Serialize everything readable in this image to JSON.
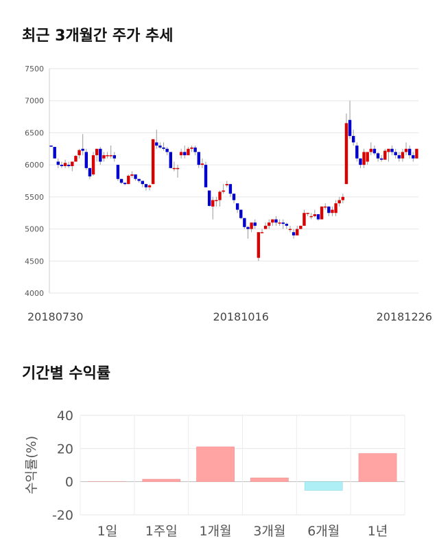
{
  "titles": {
    "price": "최근 3개월간 주가 추세",
    "returns": "기간별 수익률"
  },
  "colors": {
    "up": "#d90000",
    "down": "#0000cc",
    "bar_pos": "#ffa3a3",
    "bar_neg": "#aeeef5"
  },
  "chart_data": [
    {
      "type": "candlestick",
      "title": "최근 3개월간 주가 추세",
      "ylim": [
        4000,
        7500
      ],
      "yticks": [
        4000,
        4500,
        5000,
        5500,
        6000,
        6500,
        7000,
        7500
      ],
      "xtick_labels": [
        {
          "index": 0,
          "label": "20180730"
        },
        {
          "index": 54,
          "label": "20181016"
        },
        {
          "index": 104,
          "label": "20181226"
        }
      ],
      "ohlc": [
        [
          6300,
          6300,
          6280,
          6290
        ],
        [
          6280,
          6280,
          6100,
          6100
        ],
        [
          6050,
          6100,
          5950,
          6000
        ],
        [
          6000,
          6050,
          5950,
          5980
        ],
        [
          5980,
          6080,
          5950,
          6030
        ],
        [
          6000,
          6050,
          5950,
          5980
        ],
        [
          5980,
          6050,
          5900,
          6050
        ],
        [
          6050,
          6150,
          6050,
          6140
        ],
        [
          6150,
          6250,
          6100,
          6230
        ],
        [
          6250,
          6480,
          6150,
          6220
        ],
        [
          6200,
          6250,
          5920,
          5950
        ],
        [
          5950,
          5950,
          5780,
          5820
        ],
        [
          5850,
          6200,
          5830,
          6150
        ],
        [
          6150,
          6250,
          6050,
          6250
        ],
        [
          6250,
          6280,
          6000,
          6050
        ],
        [
          6100,
          6200,
          6050,
          6150
        ],
        [
          6150,
          6200,
          6100,
          6150
        ],
        [
          6150,
          6300,
          6100,
          6150
        ],
        [
          6150,
          6200,
          6050,
          6100
        ],
        [
          6000,
          6000,
          5750,
          5780
        ],
        [
          5780,
          5780,
          5700,
          5720
        ],
        [
          5720,
          5720,
          5680,
          5700
        ],
        [
          5700,
          5850,
          5700,
          5830
        ],
        [
          5830,
          5900,
          5800,
          5850
        ],
        [
          5850,
          5850,
          5750,
          5780
        ],
        [
          5780,
          5780,
          5720,
          5750
        ],
        [
          5750,
          5750,
          5650,
          5700
        ],
        [
          5700,
          5700,
          5600,
          5650
        ],
        [
          5650,
          5700,
          5600,
          5680
        ],
        [
          5700,
          6400,
          5700,
          6400
        ],
        [
          6350,
          6550,
          6250,
          6300
        ],
        [
          6300,
          6350,
          6250,
          6270
        ],
        [
          6270,
          6350,
          6220,
          6250
        ],
        [
          6250,
          6280,
          6150,
          6200
        ],
        [
          6200,
          6200,
          5950,
          5950
        ],
        [
          5950,
          6050,
          5900,
          5950
        ],
        [
          5950,
          6000,
          5800,
          5950
        ],
        [
          6150,
          6250,
          6100,
          6200
        ],
        [
          6200,
          6300,
          6100,
          6150
        ],
        [
          6150,
          6280,
          6150,
          6250
        ],
        [
          6250,
          6300,
          6200,
          6270
        ],
        [
          6270,
          6300,
          6150,
          6200
        ],
        [
          6200,
          6200,
          5950,
          6000
        ],
        [
          6000,
          6100,
          5950,
          6020
        ],
        [
          6000,
          6050,
          5650,
          5650
        ],
        [
          5600,
          5600,
          5350,
          5360
        ],
        [
          5350,
          5500,
          5150,
          5450
        ],
        [
          5450,
          5500,
          5350,
          5450
        ],
        [
          5450,
          5600,
          5350,
          5580
        ],
        [
          5580,
          5700,
          5550,
          5600
        ],
        [
          5680,
          5750,
          5650,
          5700
        ],
        [
          5700,
          5700,
          5500,
          5550
        ],
        [
          5550,
          5550,
          5400,
          5450
        ],
        [
          5400,
          5400,
          5250,
          5300
        ],
        [
          5300,
          5300,
          5150,
          5170
        ],
        [
          5170,
          5170,
          5000,
          5030
        ],
        [
          5030,
          5050,
          4850,
          5000
        ],
        [
          5000,
          5100,
          4950,
          5100
        ],
        [
          5100,
          5150,
          5000,
          5050
        ],
        [
          4550,
          4950,
          4500,
          4950
        ],
        [
          4950,
          5000,
          4950,
          4950
        ],
        [
          5000,
          5100,
          5000,
          5050
        ],
        [
          5050,
          5150,
          5000,
          5100
        ],
        [
          5100,
          5150,
          5050,
          5150
        ],
        [
          5150,
          5200,
          5050,
          5100
        ],
        [
          5100,
          5150,
          5050,
          5100
        ],
        [
          5100,
          5150,
          5000,
          5080
        ],
        [
          5080,
          5100,
          5000,
          5050
        ],
        [
          5000,
          5050,
          4950,
          5000
        ],
        [
          4950,
          5000,
          4850,
          4900
        ],
        [
          4900,
          5050,
          4900,
          5000
        ],
        [
          5000,
          5050,
          5000,
          5050
        ],
        [
          5050,
          5300,
          5050,
          5250
        ],
        [
          5250,
          5250,
          5200,
          5250
        ],
        [
          5200,
          5250,
          5150,
          5200
        ],
        [
          5200,
          5300,
          5180,
          5230
        ],
        [
          5230,
          5230,
          5130,
          5150
        ],
        [
          5150,
          5350,
          5150,
          5350
        ],
        [
          5350,
          5400,
          5300,
          5350
        ],
        [
          5350,
          5350,
          5200,
          5250
        ],
        [
          5250,
          5350,
          5200,
          5300
        ],
        [
          5250,
          5450,
          5200,
          5400
        ],
        [
          5400,
          5500,
          5350,
          5450
        ],
        [
          5450,
          5550,
          5400,
          5500
        ],
        [
          5700,
          6800,
          5700,
          6650
        ],
        [
          6700,
          7000,
          6400,
          6450
        ],
        [
          6450,
          6550,
          6300,
          6350
        ],
        [
          6300,
          6350,
          6050,
          6100
        ],
        [
          6100,
          6100,
          5950,
          6000
        ],
        [
          6000,
          6250,
          5950,
          6200
        ],
        [
          6050,
          6200,
          6000,
          6200
        ],
        [
          6200,
          6350,
          6150,
          6250
        ],
        [
          6250,
          6300,
          6150,
          6180
        ],
        [
          6180,
          6200,
          6050,
          6100
        ],
        [
          6100,
          6150,
          6050,
          6080
        ],
        [
          6080,
          6250,
          6080,
          6220
        ],
        [
          6200,
          6250,
          6050,
          6250
        ],
        [
          6250,
          6300,
          6150,
          6200
        ],
        [
          6200,
          6250,
          6100,
          6150
        ],
        [
          6150,
          6200,
          6050,
          6100
        ],
        [
          6100,
          6250,
          6050,
          6200
        ],
        [
          6200,
          6350,
          6150,
          6250
        ],
        [
          6250,
          6300,
          6100,
          6150
        ],
        [
          6150,
          6200,
          6050,
          6100
        ],
        [
          6100,
          6250,
          6100,
          6250
        ]
      ]
    },
    {
      "type": "bar",
      "title": "기간별 수익률",
      "ylabel": "수익률(%)",
      "ylim": [
        -20,
        40
      ],
      "yticks": [
        -20,
        0,
        20,
        40
      ],
      "categories": [
        "1일",
        "1주일",
        "1개월",
        "3개월",
        "6개월",
        "1년"
      ],
      "values": [
        0,
        1.5,
        21,
        2.3,
        -5.3,
        17
      ]
    }
  ]
}
